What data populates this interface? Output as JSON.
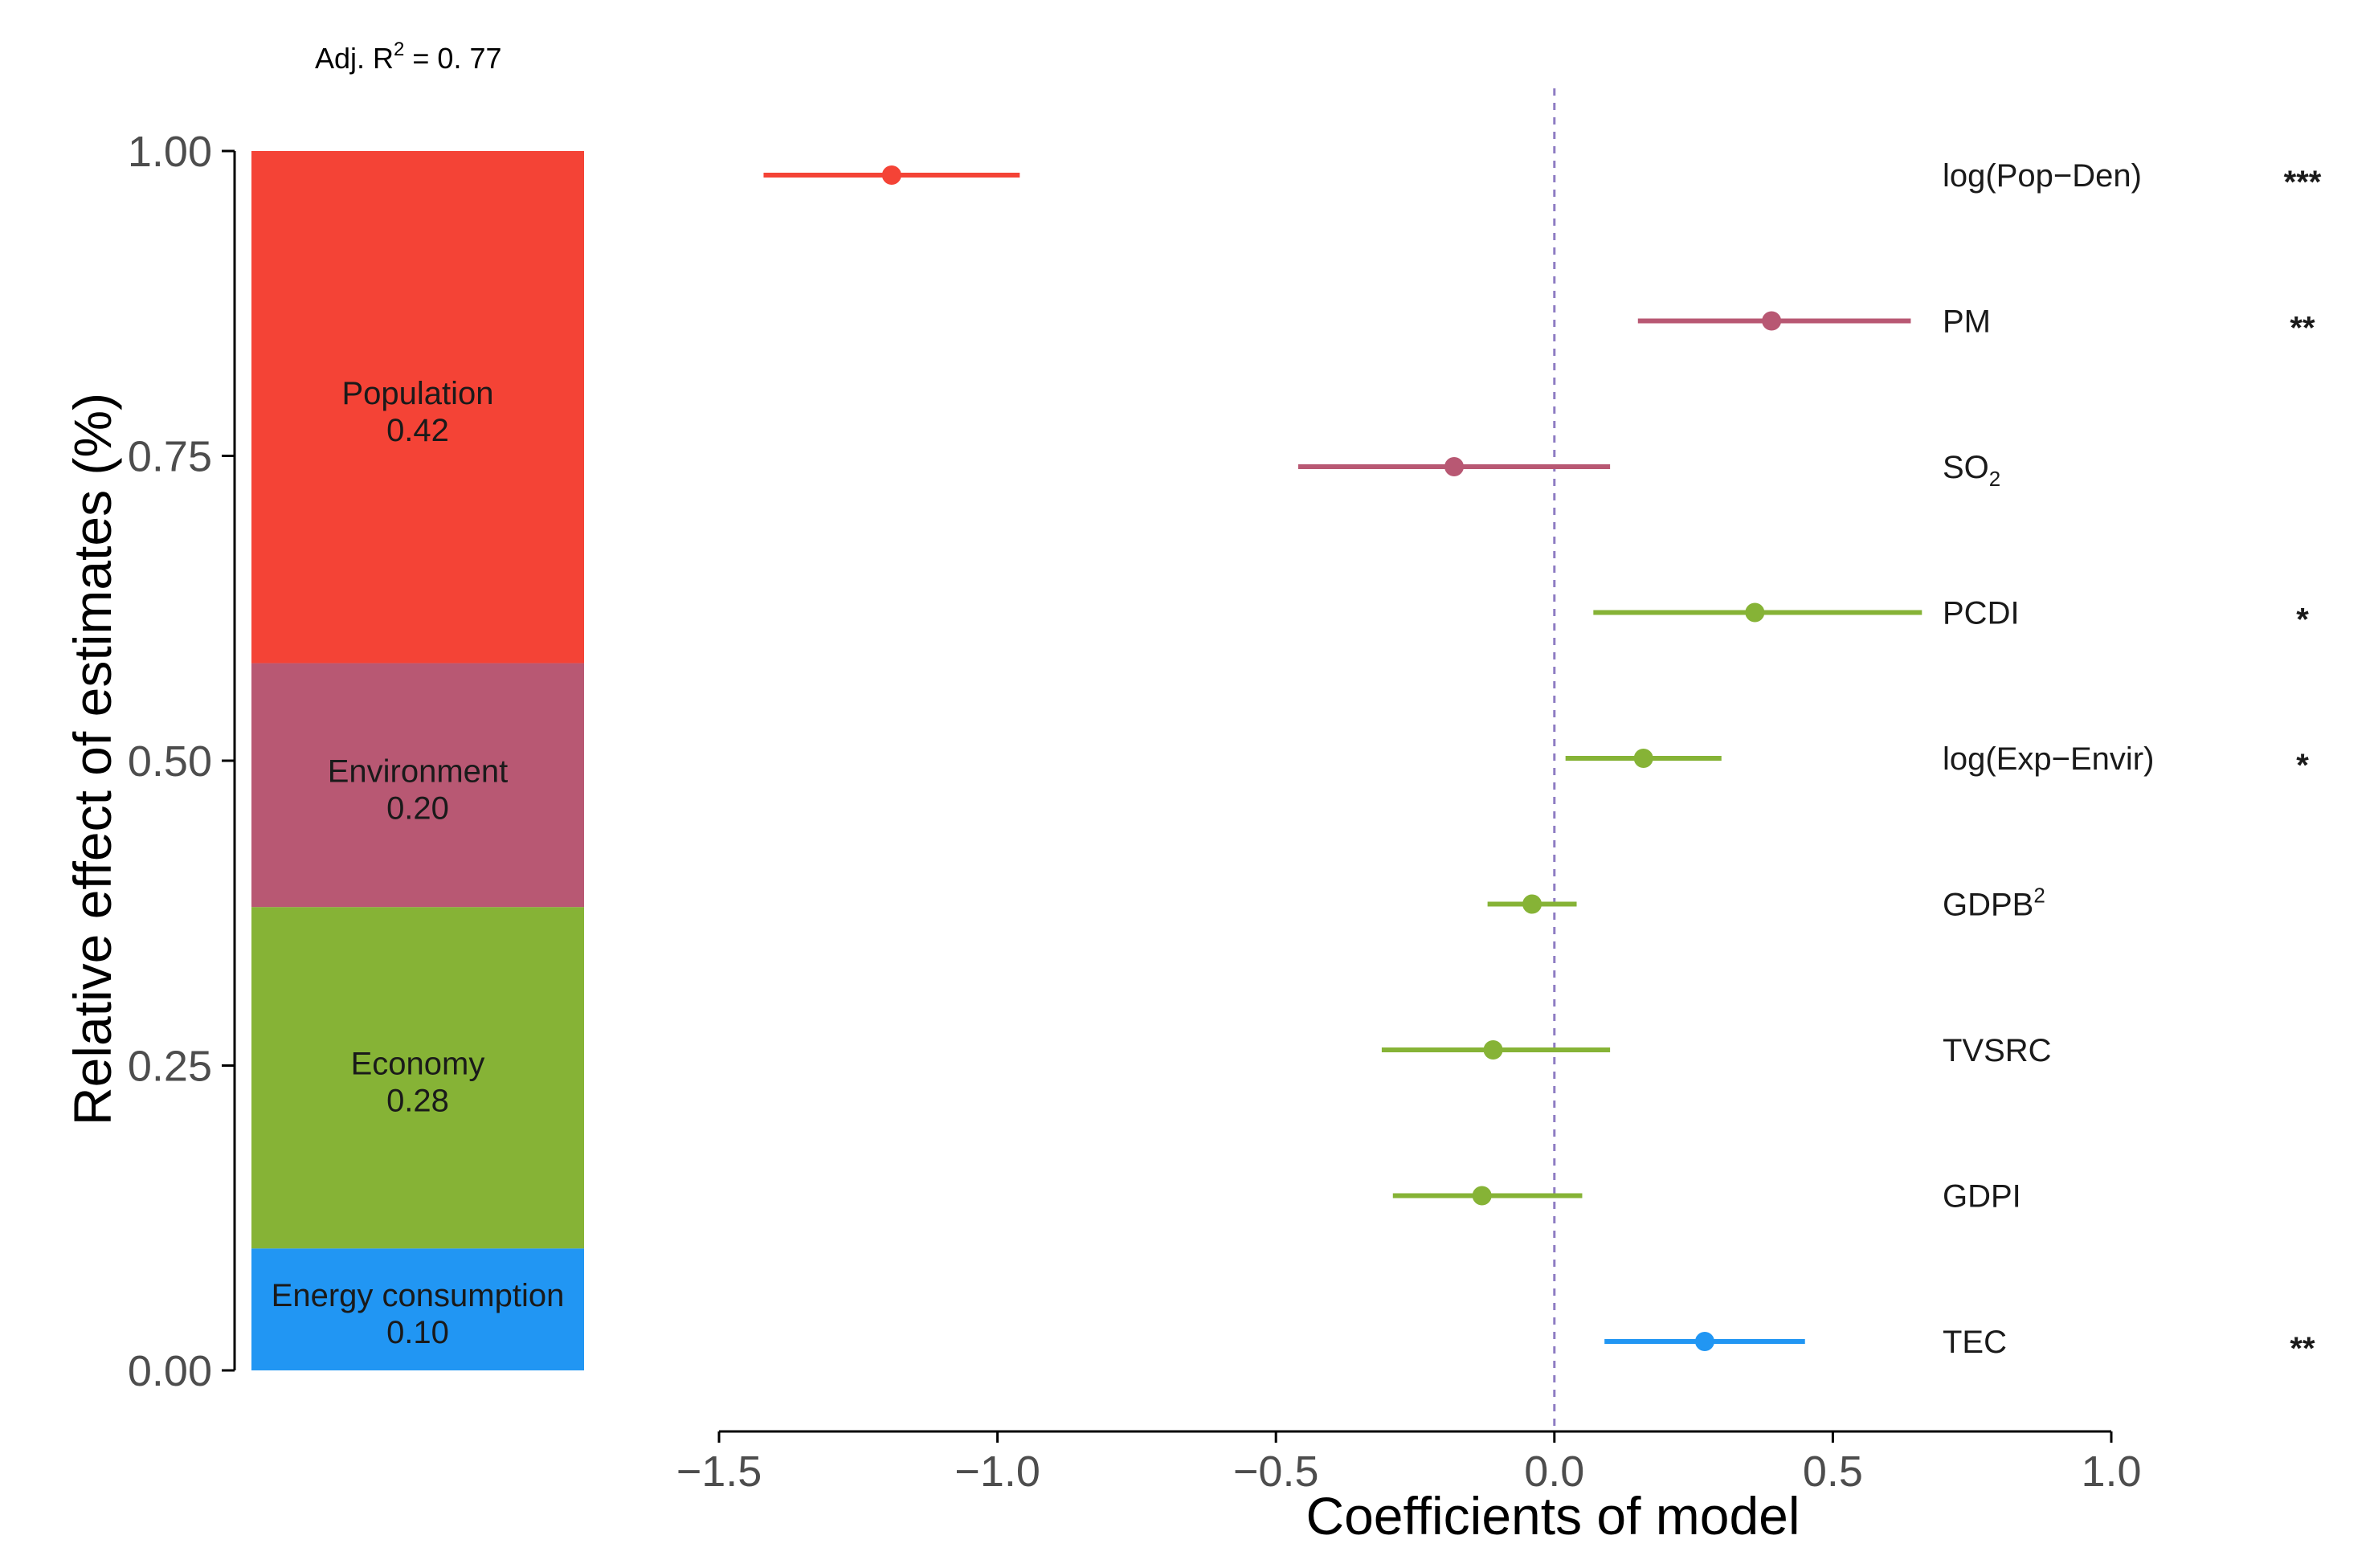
{
  "chart_data": [
    {
      "type": "bar",
      "stacked": true,
      "annotation": "Adj. R",
      "annotation_sup": "2",
      "annotation_value": " = 0. 77",
      "ylabel": "Relative effect of estimates (%)",
      "ylim": [
        0,
        1
      ],
      "yticks": [
        "0.00",
        "0.25",
        "0.50",
        "0.75",
        "1.00"
      ],
      "segments": [
        {
          "name": "Energy consumption",
          "label": "0.10",
          "value": 0.1,
          "color": "#2196F3"
        },
        {
          "name": "Economy",
          "label": "0.28",
          "value": 0.28,
          "color": "#86B336"
        },
        {
          "name": "Environment",
          "label": "0.20",
          "value": 0.2,
          "color": "#B85873"
        },
        {
          "name": "Population",
          "label": "0.42",
          "value": 0.42,
          "color": "#F44336"
        }
      ]
    },
    {
      "type": "scatter",
      "xlabel": "Coefficients of model",
      "xlim": [
        -1.5,
        1.0
      ],
      "xticks": [
        "−1.5",
        "−1.0",
        "−0.5",
        "0.0",
        "0.5",
        "1.0"
      ],
      "reference_line": {
        "x": 0,
        "style": "dashed",
        "color": "#8e7cc3"
      },
      "terms": [
        {
          "term": "log(Pop−Den)",
          "sub": "",
          "sup": "",
          "estimate": -1.19,
          "low": -1.42,
          "high": -0.96,
          "color": "#F44336",
          "sig": "***"
        },
        {
          "term": "PM",
          "sub": "",
          "sup": "",
          "estimate": 0.39,
          "low": 0.15,
          "high": 0.64,
          "color": "#B85873",
          "sig": "**"
        },
        {
          "term": "SO",
          "sub": "2",
          "sup": "",
          "estimate": -0.18,
          "low": -0.46,
          "high": 0.1,
          "color": "#B85873",
          "sig": ""
        },
        {
          "term": "PCDI",
          "sub": "",
          "sup": "",
          "estimate": 0.36,
          "low": 0.07,
          "high": 0.66,
          "color": "#86B336",
          "sig": "*"
        },
        {
          "term": "log(Exp−Envir)",
          "sub": "",
          "sup": "",
          "estimate": 0.16,
          "low": 0.02,
          "high": 0.3,
          "color": "#86B336",
          "sig": "*"
        },
        {
          "term": "GDPB",
          "sub": "",
          "sup": "2",
          "estimate": -0.04,
          "low": -0.12,
          "high": 0.04,
          "color": "#86B336",
          "sig": ""
        },
        {
          "term": "TVSRC",
          "sub": "",
          "sup": "",
          "estimate": -0.11,
          "low": -0.31,
          "high": 0.1,
          "color": "#86B336",
          "sig": ""
        },
        {
          "term": "GDPI",
          "sub": "",
          "sup": "",
          "estimate": -0.13,
          "low": -0.29,
          "high": 0.05,
          "color": "#86B336",
          "sig": ""
        },
        {
          "term": "TEC",
          "sub": "",
          "sup": "",
          "estimate": 0.27,
          "low": 0.09,
          "high": 0.45,
          "color": "#2196F3",
          "sig": "**"
        }
      ]
    }
  ]
}
